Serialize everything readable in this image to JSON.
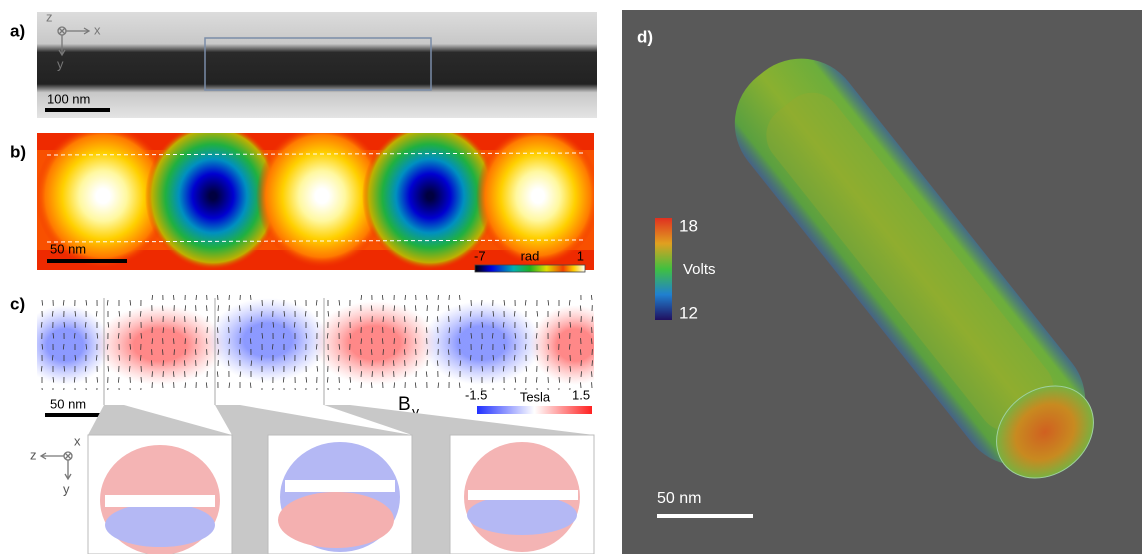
{
  "panels": {
    "a": {
      "label": "a)",
      "axes": {
        "z": "z",
        "x": "x",
        "y": "y"
      },
      "scale_bar": "100 nm"
    },
    "b": {
      "label": "b)",
      "scale_bar": "50 nm",
      "colorbar": {
        "min": -7,
        "unit": "rad",
        "max": 1
      }
    },
    "c": {
      "label": "c)",
      "scale_bar": "50 nm",
      "component": {
        "symbol": "B",
        "subscript": "y"
      },
      "colorbar": {
        "min": -1.5,
        "unit": "Tesla",
        "max": 1.5
      },
      "inset_axes": {
        "z": "z",
        "x": "x",
        "y": "y"
      }
    },
    "d": {
      "label": "d)",
      "colorbar": {
        "max": 18,
        "unit": "Volts",
        "min": 12
      },
      "scale_bar": "50 nm"
    }
  }
}
